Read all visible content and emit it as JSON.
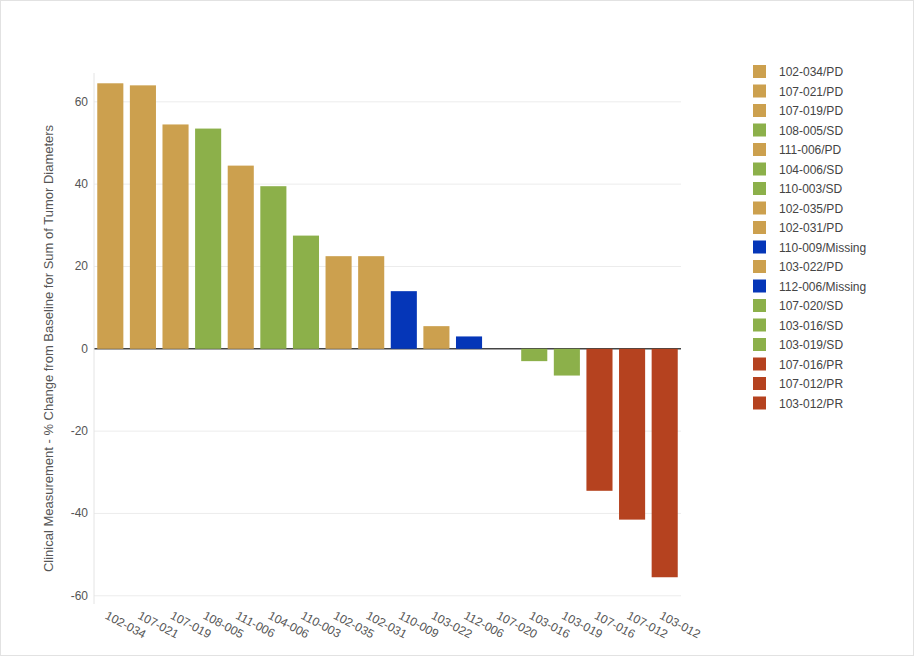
{
  "chart_data": {
    "type": "bar",
    "y_label": "Clinical Measurement - % Change from Baseline for Sum of Tumor Diameters",
    "categories": [
      "102-034",
      "107-021",
      "107-019",
      "108-005",
      "111-006",
      "104-006",
      "110-003",
      "102-035",
      "102-031",
      "110-009",
      "103-022",
      "112-006",
      "107-020",
      "103-016",
      "103-019",
      "107-016",
      "107-012",
      "103-012"
    ],
    "series": [
      {
        "name": "102-034/PD",
        "color": "#cca04e",
        "values": [
          64.5,
          null,
          null,
          null,
          null,
          null,
          null,
          null,
          null,
          null,
          null,
          null,
          null,
          null,
          null,
          null,
          null,
          null
        ]
      },
      {
        "name": "107-021/PD",
        "color": "#cca04e",
        "values": [
          null,
          64,
          null,
          null,
          null,
          null,
          null,
          null,
          null,
          null,
          null,
          null,
          null,
          null,
          null,
          null,
          null,
          null
        ]
      },
      {
        "name": "107-019/PD",
        "color": "#cca04e",
        "values": [
          null,
          null,
          54.5,
          null,
          null,
          null,
          null,
          null,
          null,
          null,
          null,
          null,
          null,
          null,
          null,
          null,
          null,
          null
        ]
      },
      {
        "name": "108-005/SD",
        "color": "#8cb04a",
        "values": [
          null,
          null,
          null,
          53.5,
          null,
          null,
          null,
          null,
          null,
          null,
          null,
          null,
          null,
          null,
          null,
          null,
          null,
          null
        ]
      },
      {
        "name": "111-006/PD",
        "color": "#cca04e",
        "values": [
          null,
          null,
          null,
          null,
          44.5,
          null,
          null,
          null,
          null,
          null,
          null,
          null,
          null,
          null,
          null,
          null,
          null,
          null
        ]
      },
      {
        "name": "104-006/SD",
        "color": "#8cb04a",
        "values": [
          null,
          null,
          null,
          null,
          null,
          39.5,
          null,
          null,
          null,
          null,
          null,
          null,
          null,
          null,
          null,
          null,
          null,
          null
        ]
      },
      {
        "name": "110-003/SD",
        "color": "#8cb04a",
        "values": [
          null,
          null,
          null,
          null,
          null,
          null,
          27.5,
          null,
          null,
          null,
          null,
          null,
          null,
          null,
          null,
          null,
          null,
          null
        ]
      },
      {
        "name": "102-035/PD",
        "color": "#cca04e",
        "values": [
          null,
          null,
          null,
          null,
          null,
          null,
          null,
          22.5,
          null,
          null,
          null,
          null,
          null,
          null,
          null,
          null,
          null,
          null
        ]
      },
      {
        "name": "102-031/PD",
        "color": "#cca04e",
        "values": [
          null,
          null,
          null,
          null,
          null,
          null,
          null,
          null,
          22.5,
          null,
          null,
          null,
          null,
          null,
          null,
          null,
          null,
          null
        ]
      },
      {
        "name": "110-009/Missing",
        "color": "#0536b8",
        "values": [
          null,
          null,
          null,
          null,
          null,
          null,
          null,
          null,
          null,
          14,
          null,
          null,
          null,
          null,
          null,
          null,
          null,
          null
        ]
      },
      {
        "name": "103-022/PD",
        "color": "#cca04e",
        "values": [
          null,
          null,
          null,
          null,
          null,
          null,
          null,
          null,
          null,
          null,
          5.5,
          null,
          null,
          null,
          null,
          null,
          null,
          null
        ]
      },
      {
        "name": "112-006/Missing",
        "color": "#0536b8",
        "values": [
          null,
          null,
          null,
          null,
          null,
          null,
          null,
          null,
          null,
          null,
          null,
          3,
          null,
          null,
          null,
          null,
          null,
          null
        ]
      },
      {
        "name": "107-020/SD",
        "color": "#8cb04a",
        "values": [
          null,
          null,
          null,
          null,
          null,
          null,
          null,
          null,
          null,
          null,
          null,
          null,
          0,
          null,
          null,
          null,
          null,
          null
        ]
      },
      {
        "name": "103-016/SD",
        "color": "#8cb04a",
        "values": [
          null,
          null,
          null,
          null,
          null,
          null,
          null,
          null,
          null,
          null,
          null,
          null,
          null,
          -3,
          null,
          null,
          null,
          null
        ]
      },
      {
        "name": "103-019/SD",
        "color": "#8cb04a",
        "values": [
          null,
          null,
          null,
          null,
          null,
          null,
          null,
          null,
          null,
          null,
          null,
          null,
          null,
          null,
          -6.5,
          null,
          null,
          null
        ]
      },
      {
        "name": "107-016/PR",
        "color": "#b5421f",
        "values": [
          null,
          null,
          null,
          null,
          null,
          null,
          null,
          null,
          null,
          null,
          null,
          null,
          null,
          null,
          null,
          -34.5,
          null,
          null
        ]
      },
      {
        "name": "107-012/PR",
        "color": "#b5421f",
        "values": [
          null,
          null,
          null,
          null,
          null,
          null,
          null,
          null,
          null,
          null,
          null,
          null,
          null,
          null,
          null,
          null,
          -41.5,
          null
        ]
      },
      {
        "name": "103-012/PR",
        "color": "#b5421f",
        "values": [
          null,
          null,
          null,
          null,
          null,
          null,
          null,
          null,
          null,
          null,
          null,
          null,
          null,
          null,
          null,
          null,
          null,
          -55.5
        ]
      }
    ],
    "ylim": [
      -62,
      67
    ],
    "yticks": [
      -60,
      -40,
      -20,
      0,
      20,
      40,
      60
    ],
    "grid": true,
    "legend": "top-right"
  }
}
